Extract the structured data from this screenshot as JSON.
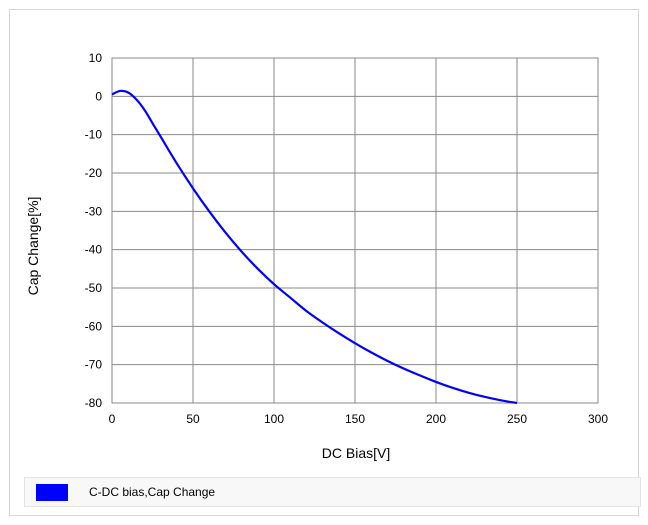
{
  "colors": {
    "series": "#0000ff",
    "grid": "#8a8a8a",
    "frame": "#d6d6d6"
  },
  "chart_data": {
    "type": "line",
    "title": "",
    "xlabel": "DC Bias[V]",
    "ylabel": "Cap Change[%]",
    "xlim": [
      0,
      300
    ],
    "ylim": [
      -80,
      10
    ],
    "x_ticks": [
      "0",
      "50",
      "100",
      "150",
      "200",
      "250",
      "300"
    ],
    "y_ticks": [
      "10",
      "0",
      "-10",
      "-20",
      "-30",
      "-40",
      "-50",
      "-60",
      "-70",
      "-80"
    ],
    "grid": true,
    "legend_position": "bottom",
    "series": [
      {
        "name": "C-DC bias,Cap Change",
        "x": [
          0,
          5,
          10,
          15,
          20,
          25,
          30,
          40,
          50,
          60,
          70,
          80,
          90,
          100,
          110,
          120,
          130,
          140,
          150,
          160,
          170,
          180,
          190,
          200,
          210,
          220,
          230,
          240,
          250
        ],
        "y": [
          0.5,
          1.4,
          1.0,
          -0.8,
          -3.5,
          -7.0,
          -10.5,
          -17.5,
          -24.0,
          -30.0,
          -35.5,
          -40.5,
          -45.0,
          -49.0,
          -52.5,
          -56.0,
          -59.0,
          -61.8,
          -64.4,
          -66.8,
          -69.0,
          -71.0,
          -72.8,
          -74.5,
          -76.0,
          -77.3,
          -78.4,
          -79.3,
          -80.0
        ]
      }
    ]
  }
}
